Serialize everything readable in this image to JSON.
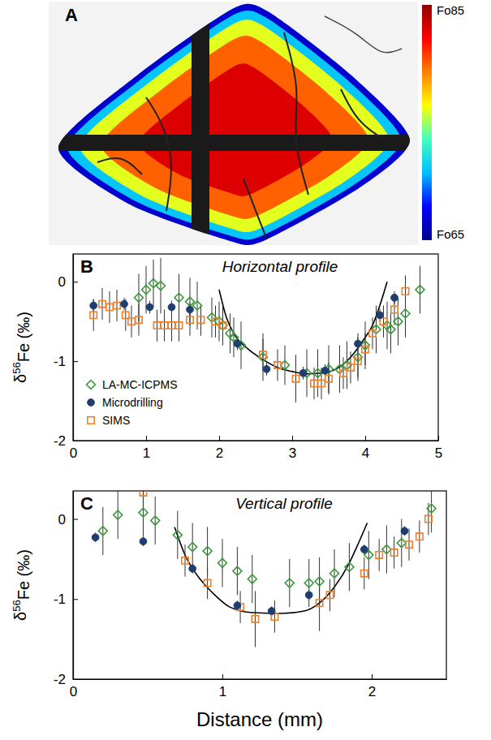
{
  "chart_data": [
    {
      "type": "image",
      "label": "A",
      "colorbar": {
        "range": [
          65,
          85
        ],
        "ticks": [
          {
            "value": 85,
            "label": "Fo85"
          },
          {
            "value": 65,
            "label": "Fo65"
          }
        ]
      }
    },
    {
      "type": "scatter",
      "label": "B",
      "title": "Horizontal profile",
      "y_label": "δ56Fe (‰)",
      "xlim": [
        0,
        5
      ],
      "xticks": [
        0,
        1,
        2,
        3,
        4,
        5
      ],
      "ylim": [
        -2,
        0.35
      ],
      "yticks": [
        -2,
        -1,
        0
      ],
      "legend": "lower left",
      "series": [
        {
          "name": "LA-MC-ICPMS",
          "color": "#3a9a3a",
          "marker": "diamond",
          "x": [
            0.9,
            1.0,
            1.1,
            1.2,
            1.45,
            1.6,
            1.7,
            1.9,
            2.0,
            2.05,
            2.15,
            2.2,
            2.3,
            2.6,
            2.9,
            3.2,
            3.35,
            3.5,
            3.65,
            3.75,
            3.9,
            4.0,
            4.15,
            4.3,
            4.35,
            4.45,
            4.55,
            4.75
          ],
          "values": [
            -0.2,
            -0.1,
            -0.02,
            -0.05,
            -0.2,
            -0.25,
            -0.3,
            -0.45,
            -0.5,
            -0.55,
            -0.65,
            -0.7,
            -0.8,
            -0.95,
            -1.05,
            -1.15,
            -1.15,
            -1.1,
            -1.1,
            -1.05,
            -0.95,
            -0.8,
            -0.6,
            -0.55,
            -0.6,
            -0.5,
            -0.4,
            -0.1
          ],
          "errors": [
            0.3,
            0.3,
            0.3,
            0.35,
            0.3,
            0.3,
            0.3,
            0.25,
            0.25,
            0.25,
            0.25,
            0.25,
            0.3,
            0.3,
            0.25,
            0.3,
            0.3,
            0.3,
            0.3,
            0.3,
            0.3,
            0.3,
            0.3,
            0.3,
            0.3,
            0.3,
            0.3,
            0.3
          ]
        },
        {
          "name": "Microdrilling",
          "color": "#1f3d6e",
          "marker": "circle",
          "x": [
            0.28,
            0.7,
            1.05,
            1.35,
            1.6,
            2.25,
            2.65,
            3.15,
            3.45,
            3.9,
            4.2,
            4.4
          ],
          "values": [
            -0.3,
            -0.28,
            -0.32,
            -0.32,
            -0.35,
            -0.78,
            -1.1,
            -1.15,
            -1.12,
            -0.78,
            -0.42,
            -0.2
          ],
          "errors": [
            0.08,
            0.08,
            0.08,
            0.08,
            0.08,
            0.08,
            0.08,
            0.08,
            0.08,
            0.08,
            0.08,
            0.08
          ]
        },
        {
          "name": "SIMS",
          "color": "#f07f2a",
          "marker": "square",
          "x": [
            0.28,
            0.4,
            0.5,
            0.6,
            0.72,
            0.8,
            0.9,
            1.15,
            1.25,
            1.35,
            1.45,
            1.6,
            1.75,
            1.95,
            2.05,
            2.6,
            2.8,
            3.05,
            3.3,
            3.4,
            3.5,
            3.7,
            3.8,
            3.9,
            4.0,
            4.1,
            4.25,
            4.4,
            4.55
          ],
          "values": [
            -0.42,
            -0.28,
            -0.32,
            -0.3,
            -0.42,
            -0.5,
            -0.48,
            -0.55,
            -0.55,
            -0.55,
            -0.55,
            -0.48,
            -0.48,
            -0.5,
            -0.55,
            -0.92,
            -1.05,
            -1.22,
            -1.28,
            -1.28,
            -1.22,
            -1.15,
            -1.08,
            -1.0,
            -0.85,
            -0.65,
            -0.5,
            -0.35,
            -0.12
          ],
          "errors": [
            0.2,
            0.2,
            0.2,
            0.2,
            0.2,
            0.2,
            0.2,
            0.2,
            0.2,
            0.2,
            0.2,
            0.2,
            0.2,
            0.2,
            0.2,
            0.2,
            0.2,
            0.3,
            0.2,
            0.2,
            0.2,
            0.2,
            0.2,
            0.2,
            0.2,
            0.2,
            0.2,
            0.2,
            0.2
          ]
        },
        {
          "type": "line",
          "color": "#000000",
          "line_style": "solid",
          "x": [
            2.0,
            2.1,
            2.2,
            2.4,
            2.6,
            2.8,
            3.0,
            3.2,
            3.4,
            3.6,
            3.8,
            4.0,
            4.1,
            4.2,
            4.3
          ],
          "values": [
            -0.1,
            -0.45,
            -0.65,
            -0.85,
            -0.98,
            -1.08,
            -1.13,
            -1.16,
            -1.15,
            -1.1,
            -0.95,
            -0.7,
            -0.55,
            -0.3,
            0.0
          ]
        }
      ]
    },
    {
      "type": "scatter",
      "label": "C",
      "title": "Vertical profile",
      "y_label": "δ56Fe (‰)",
      "x_label": "Distance (mm)",
      "xlim": [
        0,
        2.5
      ],
      "xticks": [
        0,
        1,
        2
      ],
      "ylim": [
        -2,
        0.35
      ],
      "yticks": [
        -2,
        -1,
        0
      ],
      "series": [
        {
          "name": "LA-MC-ICPMS",
          "color": "#3a9a3a",
          "marker": "diamond",
          "x": [
            0.2,
            0.3,
            0.47,
            0.55,
            0.7,
            0.8,
            0.9,
            1.0,
            1.1,
            1.2,
            1.45,
            1.58,
            1.65,
            1.75,
            1.85,
            1.98,
            2.1,
            2.2,
            2.4
          ],
          "values": [
            -0.15,
            0.05,
            0.08,
            -0.02,
            -0.2,
            -0.35,
            -0.4,
            -0.55,
            -0.65,
            -0.75,
            -0.8,
            -0.8,
            -0.78,
            -0.68,
            -0.6,
            -0.45,
            -0.38,
            -0.3,
            0.13
          ],
          "errors": [
            0.3,
            0.3,
            0.3,
            0.3,
            0.3,
            0.3,
            0.3,
            0.3,
            0.3,
            0.3,
            0.3,
            0.3,
            0.3,
            0.3,
            0.3,
            0.3,
            0.3,
            0.3,
            0.3
          ]
        },
        {
          "name": "Microdrilling",
          "color": "#1f3d6e",
          "marker": "circle",
          "x": [
            0.15,
            0.47,
            0.8,
            1.1,
            1.33,
            1.58,
            1.95,
            2.22
          ],
          "values": [
            -0.23,
            -0.28,
            -0.62,
            -1.08,
            -1.15,
            -0.95,
            -0.38,
            -0.15
          ],
          "errors": [
            0.06,
            0.06,
            0.06,
            0.06,
            0.06,
            0.06,
            0.06,
            0.06
          ]
        },
        {
          "name": "SIMS",
          "color": "#f07f2a",
          "marker": "square",
          "x": [
            0.47,
            0.75,
            0.9,
            1.12,
            1.22,
            1.35,
            1.65,
            1.72,
            1.95,
            2.05,
            2.15,
            2.25,
            2.32,
            2.38
          ],
          "values": [
            0.33,
            -0.52,
            -0.8,
            -1.1,
            -1.25,
            -1.22,
            -1.05,
            -0.95,
            -0.68,
            -0.45,
            -0.42,
            -0.32,
            -0.22,
            0.0
          ],
          "errors": [
            0.2,
            0.2,
            0.2,
            0.2,
            0.35,
            0.2,
            0.35,
            0.2,
            0.2,
            0.2,
            0.2,
            0.2,
            0.2,
            0.2
          ]
        },
        {
          "type": "line",
          "color": "#000000",
          "line_style": "solid",
          "x": [
            0.68,
            0.75,
            0.85,
            0.95,
            1.05,
            1.2,
            1.4,
            1.55,
            1.65,
            1.75,
            1.85,
            1.9,
            1.97
          ],
          "values": [
            -0.1,
            -0.45,
            -0.75,
            -0.95,
            -1.1,
            -1.17,
            -1.18,
            -1.15,
            -1.05,
            -0.85,
            -0.55,
            -0.35,
            -0.05
          ]
        }
      ]
    }
  ]
}
